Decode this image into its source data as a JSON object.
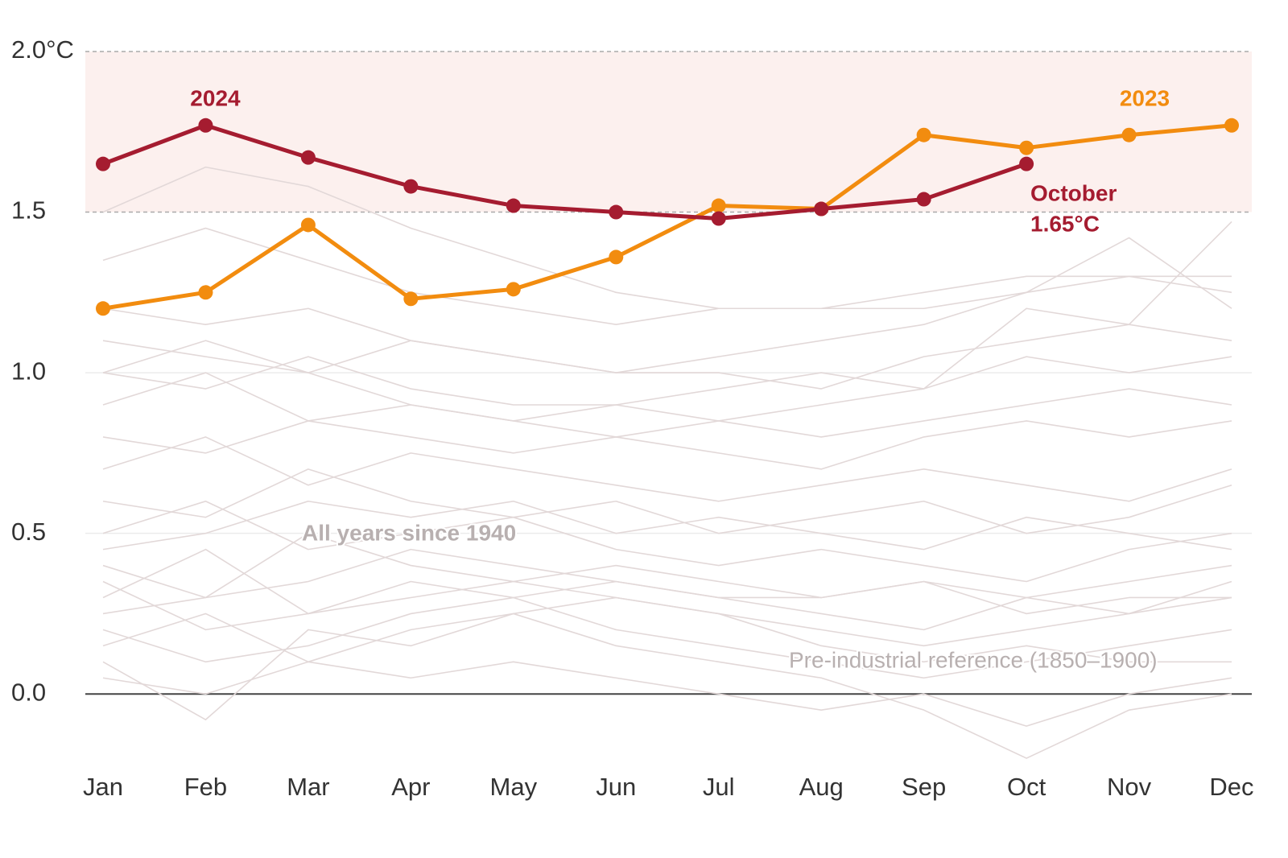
{
  "chart_data": {
    "type": "line",
    "categories": [
      "Jan",
      "Feb",
      "Mar",
      "Apr",
      "May",
      "Jun",
      "Jul",
      "Aug",
      "Sep",
      "Oct",
      "Nov",
      "Dec"
    ],
    "series": [
      {
        "name": "2024",
        "color": "#a51c30",
        "values": [
          1.65,
          1.77,
          1.67,
          1.58,
          1.52,
          1.5,
          1.48,
          1.51,
          1.54,
          1.65,
          null,
          null
        ]
      },
      {
        "name": "2023",
        "color": "#f28c0f",
        "values": [
          1.2,
          1.25,
          1.46,
          1.23,
          1.26,
          1.36,
          1.52,
          1.51,
          1.74,
          1.7,
          1.74,
          1.77
        ]
      }
    ],
    "background": {
      "label": "All years since 1940",
      "color": "#e2d8d8",
      "series": [
        [
          0.05,
          0.0,
          0.1,
          0.05,
          0.1,
          0.05,
          0.0,
          -0.05,
          0.0,
          -0.1,
          0.0,
          0.05
        ],
        [
          0.2,
          0.1,
          0.15,
          0.25,
          0.3,
          0.2,
          0.15,
          0.1,
          0.05,
          0.1,
          0.15,
          0.2
        ],
        [
          0.3,
          0.45,
          0.25,
          0.35,
          0.3,
          0.35,
          0.3,
          0.25,
          0.2,
          0.3,
          0.25,
          0.35
        ],
        [
          0.4,
          0.3,
          0.5,
          0.4,
          0.35,
          0.4,
          0.35,
          0.3,
          0.35,
          0.25,
          0.3,
          0.3
        ],
        [
          0.1,
          -0.08,
          0.2,
          0.15,
          0.25,
          0.15,
          0.1,
          0.05,
          -0.05,
          -0.2,
          -0.05,
          0.0
        ],
        [
          0.5,
          0.6,
          0.45,
          0.5,
          0.55,
          0.45,
          0.4,
          0.45,
          0.4,
          0.35,
          0.45,
          0.5
        ],
        [
          0.6,
          0.55,
          0.7,
          0.6,
          0.55,
          0.6,
          0.5,
          0.55,
          0.6,
          0.5,
          0.55,
          0.65
        ],
        [
          0.7,
          0.8,
          0.65,
          0.75,
          0.7,
          0.65,
          0.6,
          0.65,
          0.7,
          0.65,
          0.6,
          0.7
        ],
        [
          0.8,
          0.75,
          0.85,
          0.8,
          0.75,
          0.8,
          0.75,
          0.7,
          0.8,
          0.85,
          0.8,
          0.85
        ],
        [
          0.9,
          1.0,
          0.85,
          0.9,
          0.85,
          0.8,
          0.85,
          0.8,
          0.85,
          0.9,
          0.95,
          0.9
        ],
        [
          1.0,
          0.95,
          1.05,
          0.95,
          0.9,
          0.9,
          0.95,
          1.0,
          0.95,
          1.05,
          1.0,
          1.05
        ],
        [
          1.1,
          1.05,
          1.0,
          1.1,
          1.05,
          1.0,
          1.0,
          0.95,
          1.05,
          1.1,
          1.15,
          1.1
        ],
        [
          1.2,
          1.15,
          1.2,
          1.1,
          1.05,
          1.0,
          1.05,
          1.1,
          1.15,
          1.25,
          1.3,
          1.25
        ],
        [
          1.35,
          1.45,
          1.35,
          1.25,
          1.2,
          1.15,
          1.2,
          1.2,
          1.25,
          1.3,
          1.3,
          1.3
        ],
        [
          1.5,
          1.64,
          1.58,
          1.45,
          1.35,
          1.25,
          1.2,
          1.2,
          1.2,
          1.25,
          1.42,
          1.2
        ],
        [
          1.0,
          1.1,
          1.0,
          0.9,
          0.85,
          0.9,
          0.85,
          0.9,
          0.95,
          1.2,
          1.15,
          1.47
        ],
        [
          0.35,
          0.2,
          0.25,
          0.3,
          0.35,
          0.3,
          0.25,
          0.2,
          0.15,
          0.2,
          0.25,
          0.3
        ],
        [
          0.15,
          0.25,
          0.1,
          0.2,
          0.25,
          0.3,
          0.25,
          0.15,
          0.1,
          0.15,
          0.1,
          0.1
        ],
        [
          0.45,
          0.5,
          0.6,
          0.55,
          0.6,
          0.5,
          0.55,
          0.5,
          0.45,
          0.55,
          0.5,
          0.45
        ],
        [
          0.25,
          0.3,
          0.35,
          0.45,
          0.4,
          0.35,
          0.3,
          0.3,
          0.35,
          0.3,
          0.35,
          0.4
        ]
      ]
    },
    "annotations": [
      "October",
      "1.65°C",
      "Pre-industrial reference (1850–1900)"
    ],
    "ylim": [
      -0.25,
      2.05
    ],
    "yticks": [
      {
        "value": 0,
        "label": "0.0"
      },
      0.5,
      {
        "value": 1,
        "label": "1.0"
      },
      1.5,
      {
        "value": 2,
        "label": "2.0°C"
      }
    ],
    "shade": {
      "from": 1.5,
      "to": 2.0,
      "color": "#fcf0ee"
    },
    "grid": true
  }
}
